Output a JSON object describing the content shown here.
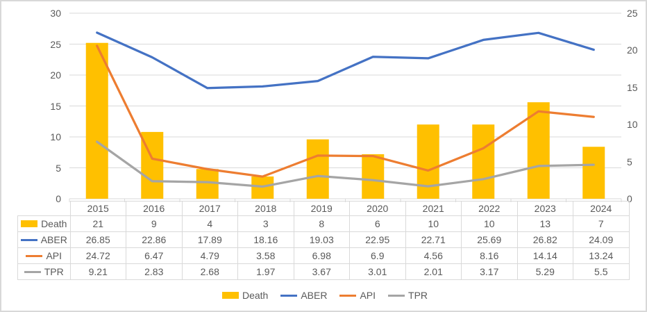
{
  "chart_data": {
    "type": "combo-bar-line",
    "title": "",
    "categories": [
      "2015",
      "2016",
      "2017",
      "2018",
      "2019",
      "2020",
      "2021",
      "2022",
      "2023",
      "2024"
    ],
    "series": [
      {
        "name": "Death",
        "type": "bar",
        "axis": "right",
        "color": "#FFC000",
        "values": [
          21,
          9,
          4,
          3,
          8,
          6,
          10,
          10,
          13,
          7
        ]
      },
      {
        "name": "ABER",
        "type": "line",
        "axis": "left",
        "color": "#4472C4",
        "values": [
          26.85,
          22.86,
          17.89,
          18.16,
          19.03,
          22.95,
          22.71,
          25.69,
          26.82,
          24.09
        ]
      },
      {
        "name": "API",
        "type": "line",
        "axis": "left",
        "color": "#ED7D31",
        "values": [
          24.72,
          6.47,
          4.79,
          3.58,
          6.98,
          6.9,
          4.56,
          8.16,
          14.14,
          13.24
        ]
      },
      {
        "name": "TPR",
        "type": "line",
        "axis": "left",
        "color": "#A5A5A5",
        "values": [
          9.21,
          2.83,
          2.68,
          1.97,
          3.67,
          3.01,
          2.01,
          3.17,
          5.29,
          5.5
        ]
      }
    ],
    "left_axis": {
      "min": 0,
      "max": 30,
      "tick_labels": [
        "0",
        "5",
        "10",
        "15",
        "20",
        "25",
        "30"
      ]
    },
    "right_axis": {
      "min": 0,
      "max": 25,
      "tick_labels": [
        "0",
        "5",
        "10",
        "15",
        "20",
        "25"
      ]
    },
    "grid": true,
    "gridline_color": "#D9D9D9",
    "text_color": "#595959",
    "legend_position": "bottom"
  },
  "data_table": {
    "rows": [
      {
        "label": "Death",
        "values": [
          "21",
          "9",
          "4",
          "3",
          "8",
          "6",
          "10",
          "10",
          "13",
          "7"
        ]
      },
      {
        "label": "ABER",
        "values": [
          "26.85",
          "22.86",
          "17.89",
          "18.16",
          "19.03",
          "22.95",
          "22.71",
          "25.69",
          "26.82",
          "24.09"
        ]
      },
      {
        "label": "API",
        "values": [
          "24.72",
          "6.47",
          "4.79",
          "3.58",
          "6.98",
          "6.9",
          "4.56",
          "8.16",
          "14.14",
          "13.24"
        ]
      },
      {
        "label": "TPR",
        "values": [
          "9.21",
          "2.83",
          "2.68",
          "1.97",
          "3.67",
          "3.01",
          "2.01",
          "3.17",
          "5.29",
          "5.5"
        ]
      }
    ]
  },
  "legend": {
    "items": [
      "Death",
      "ABER",
      "API",
      "TPR"
    ]
  }
}
